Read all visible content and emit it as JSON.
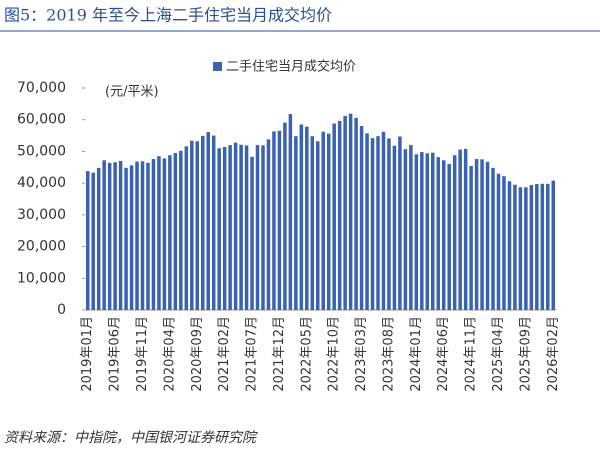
{
  "header": {
    "title": "图5：2019 年至今上海二手住宅当月成交均价"
  },
  "chart_data": {
    "type": "bar",
    "legend": "二手住宅当月成交均价",
    "y_unit": "(元/平米)",
    "color": "#3a62b0",
    "categories": [
      "2019年01月",
      null,
      null,
      null,
      null,
      "2019年06月",
      null,
      null,
      null,
      null,
      "2019年11月",
      null,
      null,
      null,
      null,
      "2020年04月",
      null,
      null,
      null,
      null,
      "2020年09月",
      null,
      null,
      null,
      null,
      "2021年02月",
      null,
      null,
      null,
      null,
      "2021年07月",
      null,
      null,
      null,
      null,
      "2021年12月",
      null,
      null,
      null,
      null,
      "2022年05月",
      null,
      null,
      null,
      null,
      "2022年10月",
      null,
      null,
      null,
      null,
      "2023年03月",
      null,
      null,
      null,
      null,
      "2023年08月",
      null,
      null,
      null,
      null,
      "2024年01月",
      null,
      null,
      null,
      null,
      "2024年06月",
      null,
      null,
      null,
      null,
      "2024年11月",
      null,
      null,
      null,
      null,
      "2025年04月",
      null,
      null,
      null,
      null,
      "2025年09月",
      null,
      null,
      null,
      null,
      "2026年02月"
    ],
    "values": [
      43800,
      43300,
      44800,
      47200,
      46400,
      46600,
      47000,
      44800,
      45600,
      46800,
      46900,
      46400,
      47600,
      48500,
      47800,
      48800,
      49500,
      50200,
      51600,
      53400,
      53200,
      54900,
      56100,
      55000,
      51000,
      51400,
      52000,
      52800,
      52100,
      51900,
      48300,
      52000,
      51900,
      53800,
      56300,
      56500,
      59100,
      61800,
      54800,
      58500,
      57800,
      54800,
      53200,
      56200,
      55600,
      58800,
      59600,
      61200,
      61900,
      60600,
      58000,
      55700,
      54200,
      54800,
      56200,
      54100,
      51800,
      54700,
      50700,
      52000,
      49100,
      49800,
      49400,
      49600,
      48200,
      47200,
      46000,
      48800,
      50600,
      50800,
      45400,
      47600,
      47500,
      46700,
      44800,
      43000,
      42200,
      40600,
      39500,
      38700,
      38700,
      39400,
      39700,
      39800,
      39800,
      40800
    ],
    "ylim": [
      0,
      70000
    ],
    "yticks": [
      0,
      {
        "value": 10000,
        "label": "10,000"
      },
      {
        "value": 20000,
        "label": "20,000"
      },
      {
        "value": 30000,
        "label": "30,000"
      },
      {
        "value": 40000,
        "label": "40,000"
      },
      {
        "value": 50000,
        "label": "50,000"
      },
      {
        "value": 60000,
        "label": "60,000"
      },
      {
        "value": 70000,
        "label": "70,000"
      }
    ]
  },
  "footer": {
    "source": "资料来源：中指院，中国银河证券研究院"
  }
}
